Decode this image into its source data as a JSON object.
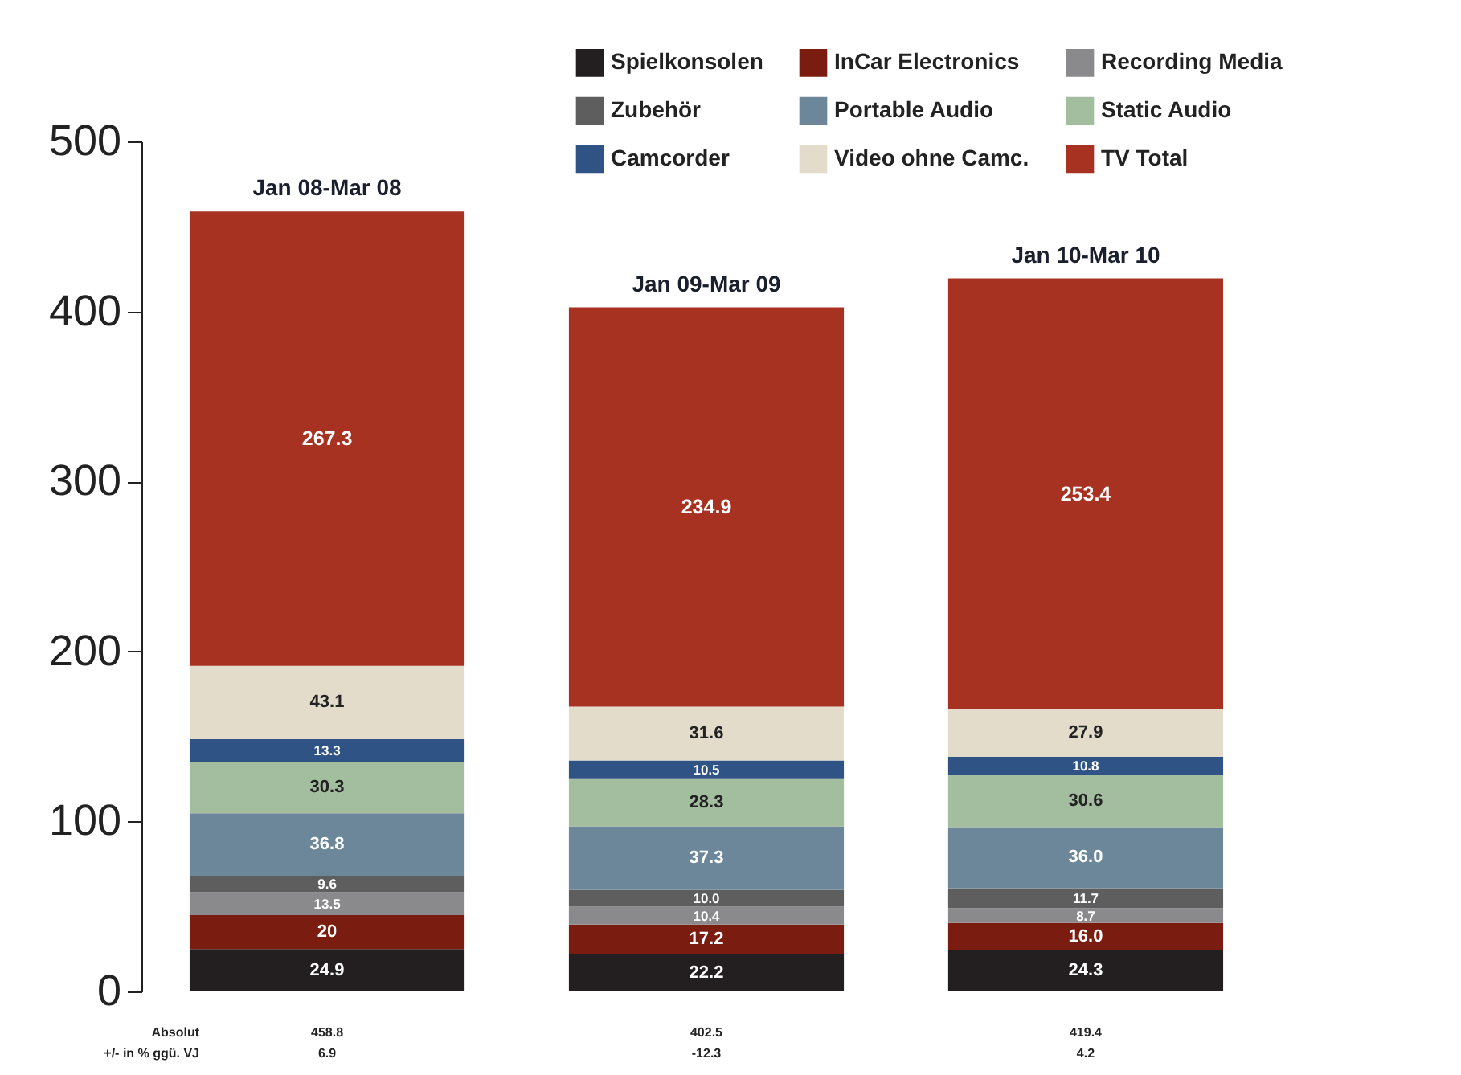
{
  "chart_data": {
    "type": "bar",
    "stacked": true,
    "categories": [
      "Jan 08-Mar 08",
      "Jan 09-Mar 09",
      "Jan 10-Mar 10"
    ],
    "series": [
      {
        "name": "Spielkonsolen",
        "color": "#231f20",
        "values": [
          24.9,
          22.2,
          24.3
        ],
        "value_labels": [
          "24.9",
          "22.2",
          "24.3"
        ]
      },
      {
        "name": "InCar Electronics",
        "color": "#7a1c10",
        "values": [
          20,
          17.2,
          16.0
        ],
        "value_labels": [
          "20",
          "17.2",
          "16.0"
        ]
      },
      {
        "name": "Recording Media",
        "color": "#8a8a8c",
        "values": [
          13.5,
          10.4,
          8.7
        ],
        "value_labels": [
          "13.5",
          "10.4",
          "8.7"
        ]
      },
      {
        "name": "Zubehör",
        "color": "#5e5e5e",
        "values": [
          9.6,
          10.0,
          11.7
        ],
        "value_labels": [
          "9.6",
          "10.0",
          "11.7"
        ]
      },
      {
        "name": "Portable Audio",
        "color": "#6b8799",
        "values": [
          36.8,
          37.3,
          36.0
        ],
        "value_labels": [
          "36.8",
          "37.3",
          "36.0"
        ]
      },
      {
        "name": "Static Audio",
        "color": "#a3bd9f",
        "values": [
          30.3,
          28.3,
          30.6
        ],
        "value_labels": [
          "30.3",
          "28.3",
          "30.6"
        ]
      },
      {
        "name": "Camcorder",
        "color": "#2f5384",
        "values": [
          13.3,
          10.5,
          10.8
        ],
        "value_labels": [
          "13.3",
          "10.5",
          "10.8"
        ]
      },
      {
        "name": "Video ohne Camc.",
        "color": "#e3dccb",
        "values": [
          43.1,
          31.6,
          27.9
        ],
        "value_labels": [
          "43.1",
          "31.6",
          "27.9"
        ]
      },
      {
        "name": "TV Total",
        "color": "#a83222",
        "values": [
          267.3,
          234.9,
          253.4
        ],
        "value_labels": [
          "267.3",
          "234.9",
          "253.4"
        ]
      }
    ],
    "ylim": [
      0,
      500
    ],
    "yticks": [
      0,
      100,
      200,
      300,
      400,
      500
    ],
    "grid": false,
    "legend": "top right",
    "totals": [
      "458.8",
      "402.5",
      "419.4"
    ],
    "annotations": [
      "Absolut",
      "+/- in % ggü. VJ",
      "6.9",
      "-12.3",
      "4.2"
    ]
  }
}
